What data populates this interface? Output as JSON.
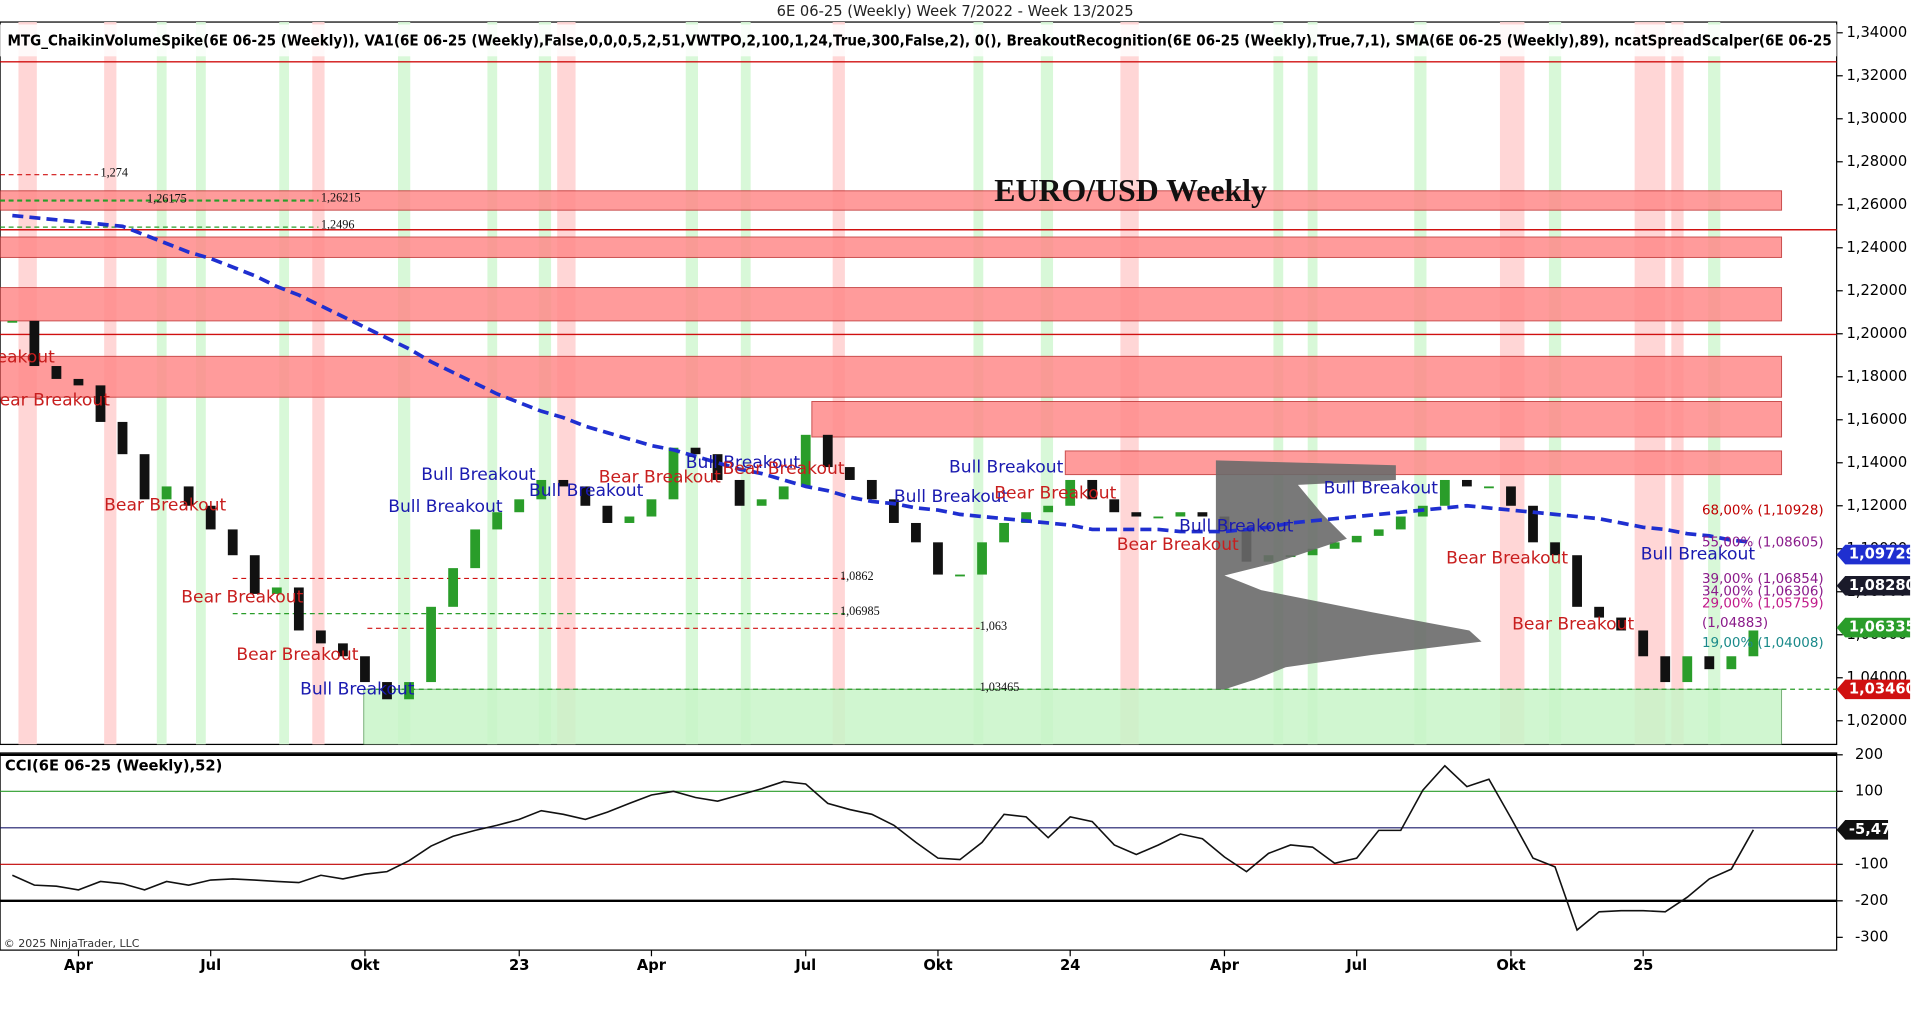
{
  "header": {
    "title": "6E 06-25 (Weekly)  Week 7/2022 - Week 13/2025",
    "indicators": "MTG_ChaikinVolumeSpike(6E  06-25  (Weekly)),  VA1(6E  06-25  (Weekly),False,0,0,0,5,2,51,VWTPO,2,100,1,24,True,300,False,2),  0(),  BreakoutRecognition(6E  06-25  (Weekly),True,7,1),  SMA(6E  06-25  (Weekly),89),  ncatSpreadScalper(6E  06-25"
  },
  "copyright": "© 2025 NinjaTrader, LLC",
  "chart_data": [
    {
      "type": "candlestick",
      "title": "EURO/USD Weekly",
      "categories": [
        null,
        null,
        null,
        "Apr",
        null,
        null,
        null,
        null,
        null,
        "Jul",
        null,
        null,
        null,
        null,
        null,
        null,
        "Okt",
        null,
        null,
        null,
        null,
        null,
        null,
        "23",
        null,
        null,
        null,
        null,
        null,
        "Apr",
        null,
        null,
        null,
        null,
        null,
        null,
        "Jul",
        null,
        null,
        null,
        null,
        null,
        "Okt",
        null,
        null,
        null,
        null,
        null,
        "24",
        null,
        null,
        null,
        null,
        null,
        null,
        "Apr",
        null,
        null,
        null,
        null,
        null,
        "Jul",
        null,
        null,
        null,
        null,
        null,
        null,
        "Okt",
        null,
        null,
        null,
        null,
        null,
        "25",
        null,
        null,
        null,
        null,
        null
      ],
      "series": [
        {
          "type": "candlestick",
          "up_color": "#2a9d2a",
          "down_color": "#111111",
          "values": [
            1.206,
            1.185,
            1.179,
            1.176,
            1.159,
            1.144,
            1.123,
            1.129,
            1.12,
            1.109,
            1.097,
            1.079,
            1.082,
            1.062,
            1.056,
            1.05,
            1.038,
            1.03,
            1.038,
            1.073,
            1.091,
            1.109,
            1.117,
            1.123,
            1.132,
            1.129,
            1.12,
            1.112,
            1.115,
            1.123,
            1.147,
            1.144,
            1.132,
            1.12,
            1.123,
            1.129,
            1.153,
            1.138,
            1.132,
            1.123,
            1.112,
            1.103,
            1.088,
            1.088,
            1.103,
            1.112,
            1.117,
            1.12,
            1.132,
            1.123,
            1.117,
            1.115,
            1.115,
            1.117,
            1.115,
            1.109,
            1.094,
            1.097,
            1.097,
            1.1,
            1.103,
            1.106,
            1.109,
            1.115,
            1.12,
            1.132,
            1.129,
            1.129,
            1.12,
            1.103,
            1.097,
            1.073,
            1.068,
            1.062,
            1.05,
            1.038,
            1.05,
            1.044,
            1.05,
            1.062
          ]
        },
        {
          "type": "line",
          "style": "dashed",
          "color": "#1f2fd0",
          "values": [
            1.255,
            1.254,
            1.253,
            1.252,
            1.251,
            1.25,
            1.246,
            1.242,
            1.238,
            1.235,
            1.231,
            1.227,
            1.222,
            1.218,
            1.213,
            1.208,
            1.203,
            1.198,
            1.193,
            1.187,
            1.182,
            1.177,
            1.172,
            1.168,
            1.164,
            1.161,
            1.157,
            1.154,
            1.151,
            1.148,
            1.146,
            1.143,
            1.14,
            1.137,
            1.135,
            1.132,
            1.129,
            1.127,
            1.124,
            1.122,
            1.121,
            1.119,
            1.118,
            1.116,
            1.115,
            1.114,
            1.113,
            1.112,
            1.111,
            1.109,
            1.109,
            1.109,
            1.109,
            1.108,
            1.108,
            1.108,
            1.109,
            1.11,
            1.112,
            1.113,
            1.114,
            1.115,
            1.116,
            1.117,
            1.118,
            1.119,
            1.12,
            1.119,
            1.118,
            1.117,
            1.116,
            1.115,
            1.114,
            1.112,
            1.11,
            1.109,
            1.107,
            1.106,
            1.104,
            1.103
          ]
        }
      ],
      "ylim": [
        1.009,
        1.345
      ],
      "yticks": [
        {
          "value": 1.34,
          "label": "1,34000"
        },
        {
          "value": 1.32,
          "label": "1,32000"
        },
        {
          "value": 1.3,
          "label": "1,30000"
        },
        {
          "value": 1.28,
          "label": "1,28000"
        },
        {
          "value": 1.26,
          "label": "1,26000"
        },
        {
          "value": 1.24,
          "label": "1,24000"
        },
        {
          "value": 1.22,
          "label": "1,22000"
        },
        {
          "value": 1.2,
          "label": "1,20000"
        },
        {
          "value": 1.18,
          "label": "1,18000"
        },
        {
          "value": 1.16,
          "label": "1,16000"
        },
        {
          "value": 1.14,
          "label": "1,14000"
        },
        {
          "value": 1.12,
          "label": "1,12000"
        },
        {
          "value": 1.1,
          "label": "1,10000"
        },
        {
          "value": 1.08,
          "label": "1,08000"
        },
        {
          "value": 1.06,
          "label": "1,06000"
        },
        {
          "value": 1.04,
          "label": "1,04000"
        },
        {
          "value": 1.02,
          "label": "1,02000"
        }
      ],
      "zones": [
        {
          "range": [
            1.2575,
            1.2665
          ],
          "color": "#ff8a8a"
        },
        {
          "range": [
            1.2355,
            1.245
          ],
          "color": "#ff8a8a"
        },
        {
          "range": [
            1.206,
            1.2215
          ],
          "color": "#ff8a8a"
        },
        {
          "range": [
            1.1705,
            1.1895
          ],
          "color": "#ff8a8a"
        },
        {
          "range": [
            1.152,
            1.1685
          ],
          "color": "#ff8a8a"
        },
        {
          "range": [
            1.1345,
            1.1455
          ],
          "color": "#ff8a8a"
        },
        {
          "range": [
            1.0085,
            1.03465
          ],
          "color": "#c8f5c8"
        }
      ],
      "lines": [
        {
          "value": 1.3265,
          "color": "#d01010"
        },
        {
          "value": 1.2484,
          "color": "#d01010"
        },
        {
          "value": 1.1997,
          "color": "#d01010"
        }
      ],
      "levels": [
        {
          "value": 1.274,
          "label": "1,274",
          "color": "#d01010"
        },
        {
          "value": 1.26175,
          "label": "1,26175",
          "color": "#2a9d2a"
        },
        {
          "value": 1.26215,
          "label": "1,26215",
          "color": "#2a9d2a"
        },
        {
          "value": 1.2496,
          "label": "1,2496",
          "color": "#2a9d2a"
        },
        {
          "value": 1.0862,
          "label": "1,0862",
          "color": "#d01010"
        },
        {
          "value": 1.06985,
          "label": "1,06985",
          "color": "#2a9d2a"
        },
        {
          "value": 1.063,
          "label": "1,063",
          "color": "#d01010"
        },
        {
          "value": 1.03465,
          "label": "1,03465",
          "color": "#2a9d2a"
        }
      ],
      "fib_labels": [
        {
          "text": "68,00% (1,10928)",
          "color": "#c00000"
        },
        {
          "text": "55,00% (1,08605)",
          "color": "#8a1a8a"
        },
        {
          "text": "39,00% (1,06854)",
          "color": "#8a1a8a"
        },
        {
          "text": "34,00% (1,06306)",
          "color": "#8a1a8a"
        },
        {
          "text": "29,00% (1,05759)",
          "color": "#c01a8a"
        },
        {
          "text": "(1,04883)",
          "color": "#8a1a8a"
        },
        {
          "text": "19,00% (1,04008)",
          "color": "#1a8a8a"
        }
      ],
      "price_tags": [
        {
          "value": 1.09729,
          "label": "1,09729",
          "color": "#1f2fd0"
        },
        {
          "value": 1.0828,
          "label": "1,08280",
          "color": "#1a1a2a"
        },
        {
          "value": 1.06335,
          "label": "1,06335",
          "color": "#2a9d2a"
        },
        {
          "value": 1.0346,
          "label": "1,03460",
          "color": "#d01010"
        }
      ],
      "annotations": [
        {
          "text": "Bear Breakout",
          "color": "#c81e1e"
        },
        {
          "text": "Bear Breakout",
          "color": "#c81e1e"
        },
        {
          "text": "Bear Breakout",
          "color": "#c81e1e"
        },
        {
          "text": "Bear Breakout",
          "color": "#c81e1e"
        },
        {
          "text": "Bear Breakout",
          "color": "#c81e1e"
        },
        {
          "text": "Bull Breakout",
          "color": "#1a1ab0"
        },
        {
          "text": "Bull Breakout",
          "color": "#1a1ab0"
        },
        {
          "text": "Bull Breakout",
          "color": "#1a1ab0"
        },
        {
          "text": "Bull Breakout",
          "color": "#1a1ab0"
        },
        {
          "text": "Bear Breakout",
          "color": "#c81e1e"
        },
        {
          "text": "Bull Breakout",
          "color": "#1a1ab0"
        },
        {
          "text": "Bear Breakout",
          "color": "#c81e1e"
        },
        {
          "text": "Bull Breakout",
          "color": "#1a1ab0"
        },
        {
          "text": "Bull Breakout",
          "color": "#1a1ab0"
        },
        {
          "text": "Bear Breakout",
          "color": "#c81e1e"
        },
        {
          "text": "Bear Breakout",
          "color": "#c81e1e"
        },
        {
          "text": "Bull Breakout",
          "color": "#1a1ab0"
        },
        {
          "text": "Bull Breakout",
          "color": "#1a1ab0"
        },
        {
          "text": "Bear Breakout",
          "color": "#c81e1e"
        },
        {
          "text": "Bull Breakout",
          "color": "#1a1ab0"
        },
        {
          "text": "Bear Breakout",
          "color": "#c81e1e"
        }
      ]
    },
    {
      "type": "line",
      "title": "CCI(6E 06-25 (Weekly),52)",
      "series": [
        {
          "color": "#111111",
          "values": [
            -130,
            -157,
            -160,
            -170,
            -147,
            -153,
            -170,
            -147,
            -157,
            -143,
            -140,
            -143,
            -147,
            -150,
            -130,
            -140,
            -127,
            -120,
            -90,
            -50,
            -23,
            -7,
            7,
            23,
            47,
            37,
            23,
            43,
            67,
            90,
            100,
            83,
            73,
            90,
            107,
            127,
            120,
            67,
            50,
            37,
            7,
            -40,
            -83,
            -87,
            -40,
            37,
            30,
            -27,
            30,
            17,
            -47,
            -73,
            -47,
            -17,
            -30,
            -80,
            -120,
            -70,
            -47,
            -53,
            -97,
            -83,
            -7,
            -7,
            103,
            170,
            113,
            133,
            27,
            -83,
            -107,
            -280,
            -230,
            -227,
            -227,
            -230,
            -190,
            -140,
            -113,
            -5.47
          ],
          "value_labels": {
            "79": "-5,47"
          }
        }
      ],
      "ylim": [
        -335,
        205
      ],
      "yticks": [
        200,
        100,
        -100,
        -200,
        -300
      ],
      "reference_lines": [
        {
          "value": 200,
          "color": "#000000",
          "width": 2
        },
        {
          "value": 100,
          "color": "#2a9d2a",
          "width": 1
        },
        {
          "value": 0,
          "color": "#1a1a6a",
          "width": 1
        },
        {
          "value": -100,
          "color": "#c00000",
          "width": 1
        },
        {
          "value": -200,
          "color": "#000000",
          "width": 2
        }
      ]
    }
  ]
}
